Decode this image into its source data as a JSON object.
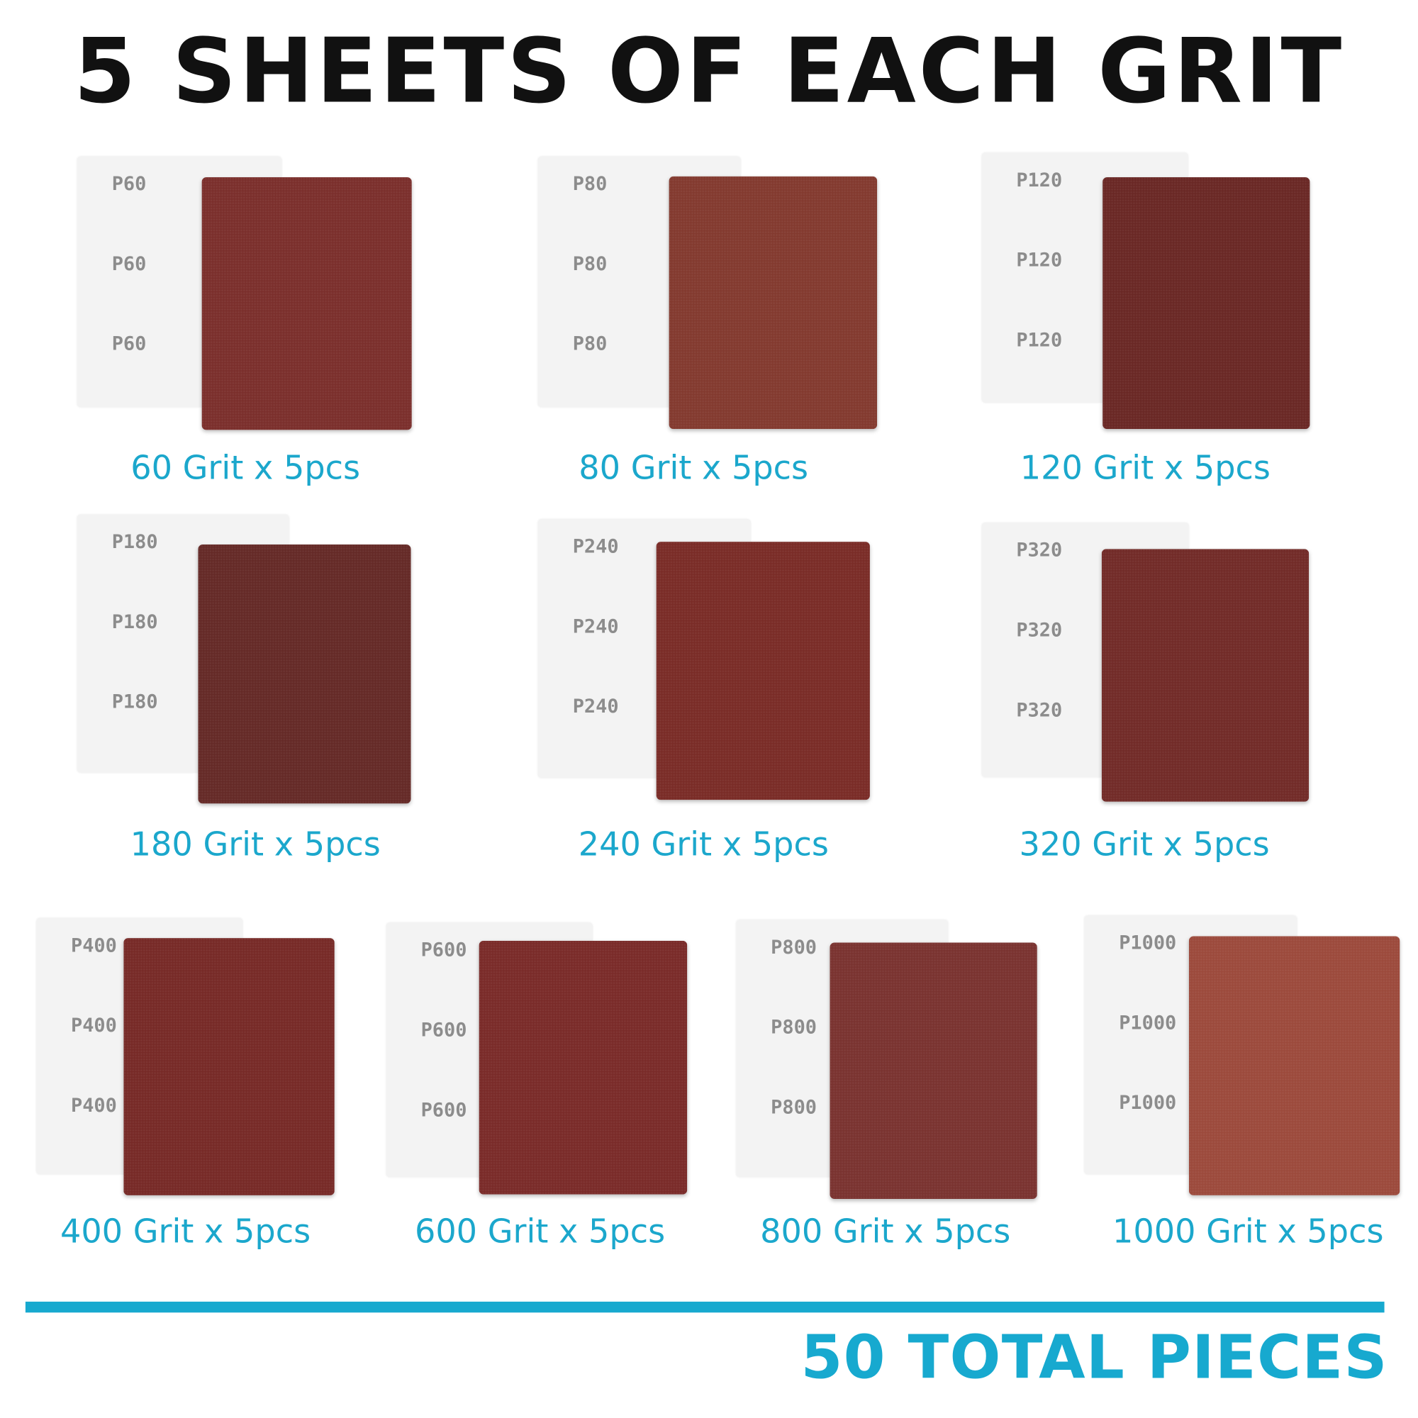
{
  "title": "5 SHEETS OF EACH GRIT",
  "footer": "50 TOTAL PIECES",
  "colors": {
    "accent": "#17a9cf",
    "backing": "#f3f3f3"
  },
  "grits": [
    {
      "label": "60 Grit x 5pcs",
      "backing_text": "P60",
      "color": "#7b2f2c"
    },
    {
      "label": "80 Grit x 5pcs",
      "backing_text": "P80",
      "color": "#833a2f"
    },
    {
      "label": "120 Grit x 5pcs",
      "backing_text": "P120",
      "color": "#6a2825"
    },
    {
      "label": "180 Grit x 5pcs",
      "backing_text": "P180",
      "color": "#652a27"
    },
    {
      "label": "240 Grit x 5pcs",
      "backing_text": "P240",
      "color": "#7a2c27"
    },
    {
      "label": "320 Grit x 5pcs",
      "backing_text": "P320",
      "color": "#722b28"
    },
    {
      "label": "400 Grit x 5pcs",
      "backing_text": "P400",
      "color": "#772a27"
    },
    {
      "label": "600 Grit x 5pcs",
      "backing_text": "P600",
      "color": "#7a2b29"
    },
    {
      "label": "800 Grit x 5pcs",
      "backing_text": "P800",
      "color": "#7a3330"
    },
    {
      "label": "1000 Grit x 5pcs",
      "backing_text": "P1000",
      "color": "#9c4a3c"
    }
  ]
}
